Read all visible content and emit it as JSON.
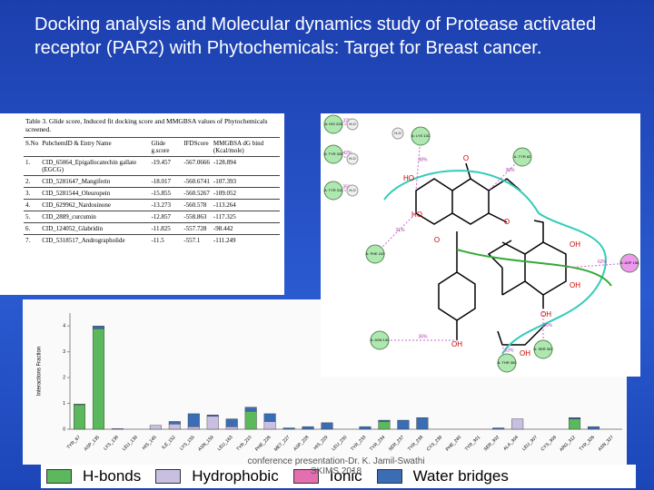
{
  "title": "Docking analysis and Molecular dynamics study of Protease activated receptor (PAR2) with Phytochemicals: Target for Breast cancer.",
  "table": {
    "caption": "Table 3. Glide score, Induced fit docking score and MMGBSA values of Phytochemicals screened.",
    "headers": [
      "S.No",
      "PubchemID & Entry Name",
      "Glide g.score",
      "IFDScore",
      "MMGBSA dG bind (Kcal/mole)"
    ],
    "rows": [
      [
        "1.",
        "CID_65064_Epigallocatechin gallate (EGCG)",
        "-19.457",
        "-567.0666",
        "-128.894"
      ],
      [
        "2.",
        "CID_5281647_Mangiferin",
        "-18.017",
        "-560.6741",
        "-107.393"
      ],
      [
        "3.",
        "CID_5281544_Oleuropein",
        "-15.855",
        "-560.5267",
        "-109.052"
      ],
      [
        "4.",
        "CID_629962_Nardosinone",
        "-13.273",
        "-560.578",
        "-113.264"
      ],
      [
        "5.",
        "CID_2889_curcumin",
        "-12.857",
        "-558.863",
        "-117.325"
      ],
      [
        "6.",
        "CID_124052_Glabridin",
        "-11.825",
        "-557.728",
        "-98.442"
      ],
      [
        "7.",
        "CID_5318517_Andrographolide",
        "-11.5",
        "-557.1",
        "-111.249"
      ]
    ]
  },
  "diagram": {
    "water": "H-O",
    "residues": [
      {
        "label": "A: HIS 228",
        "pct": "32%"
      },
      {
        "label": "A: TYR 326",
        "pct": "42%"
      },
      {
        "label": "A: TYR 311",
        "pct": "35%"
      },
      {
        "label": "A: LYS 131",
        "pct": "38%"
      },
      {
        "label": "A: TYR 82",
        "pct": "30%"
      },
      {
        "label": "A: PHE 243",
        "pct": "31%"
      },
      {
        "label": "A: ASP 156",
        "pct": "62%"
      },
      {
        "label": "A: ASN 130",
        "pct": "36%"
      },
      {
        "label": "A: SER 302",
        "pct": "40%"
      },
      {
        "label": "A: THR 300",
        "pct": "33%"
      }
    ],
    "atoms": [
      "HO",
      "O",
      "O",
      "O",
      "OH",
      "OH",
      "OH",
      "HO",
      "OH",
      "OH"
    ]
  },
  "chart_data": {
    "type": "bar",
    "stacked": true,
    "y_label": "Interactions Fraction",
    "categories": [
      "TYR_67",
      "ASP_135",
      "LYS_138",
      "LEU_139",
      "HIS_145",
      "ILE_152",
      "LYS_155",
      "ASN_159",
      "LEU_163",
      "TYR_210",
      "PHE_226",
      "MET_227",
      "ASP_228",
      "HIS_229",
      "LEU_230",
      "TYR_233",
      "TYR_234",
      "SER_237",
      "TYR_238",
      "CYS_239",
      "PHE_240",
      "TYR_301",
      "SER_302",
      "ALA_304",
      "LEU_307",
      "CYS_309",
      "ARG_312",
      "TYR_326",
      "ASN_327"
    ],
    "series": [
      {
        "name": "H-bonds",
        "color": "#5cb85c",
        "values": [
          0.95,
          3.9,
          0,
          0,
          0,
          0,
          0,
          0,
          0,
          0.7,
          0,
          0,
          0,
          0,
          0,
          0,
          0.3,
          0,
          0,
          0,
          0,
          0,
          0,
          0,
          0,
          0,
          0.4,
          0,
          0
        ]
      },
      {
        "name": "Hydrophobic",
        "color": "#c9bfe0",
        "values": [
          0,
          0,
          0,
          0,
          0.15,
          0.2,
          0.1,
          0.5,
          0.1,
          0,
          0.3,
          0,
          0,
          0,
          0,
          0,
          0,
          0,
          0,
          0,
          0,
          0,
          0,
          0.4,
          0,
          0,
          0,
          0,
          0
        ]
      },
      {
        "name": "Ionic",
        "color": "#e46fb0",
        "values": [
          0,
          0,
          0,
          0,
          0,
          0,
          0,
          0,
          0,
          0,
          0,
          0,
          0,
          0,
          0,
          0,
          0,
          0,
          0,
          0,
          0,
          0,
          0,
          0,
          0,
          0,
          0,
          0,
          0
        ]
      },
      {
        "name": "Water bridges",
        "color": "#3a6db3",
        "values": [
          0.02,
          0.1,
          0.02,
          0,
          0,
          0.1,
          0.5,
          0.05,
          0.3,
          0.15,
          0.3,
          0.05,
          0.1,
          0.25,
          0,
          0.1,
          0.05,
          0.35,
          0.45,
          0,
          0,
          0,
          0.05,
          0,
          0,
          0,
          0.05,
          0.1,
          0
        ]
      }
    ],
    "ylim": [
      0,
      4.5
    ],
    "yticks": [
      0,
      1,
      2,
      3,
      4
    ]
  },
  "footer": "conference presentation-Dr. K. Jamil-Swathi SKIMS 2018"
}
